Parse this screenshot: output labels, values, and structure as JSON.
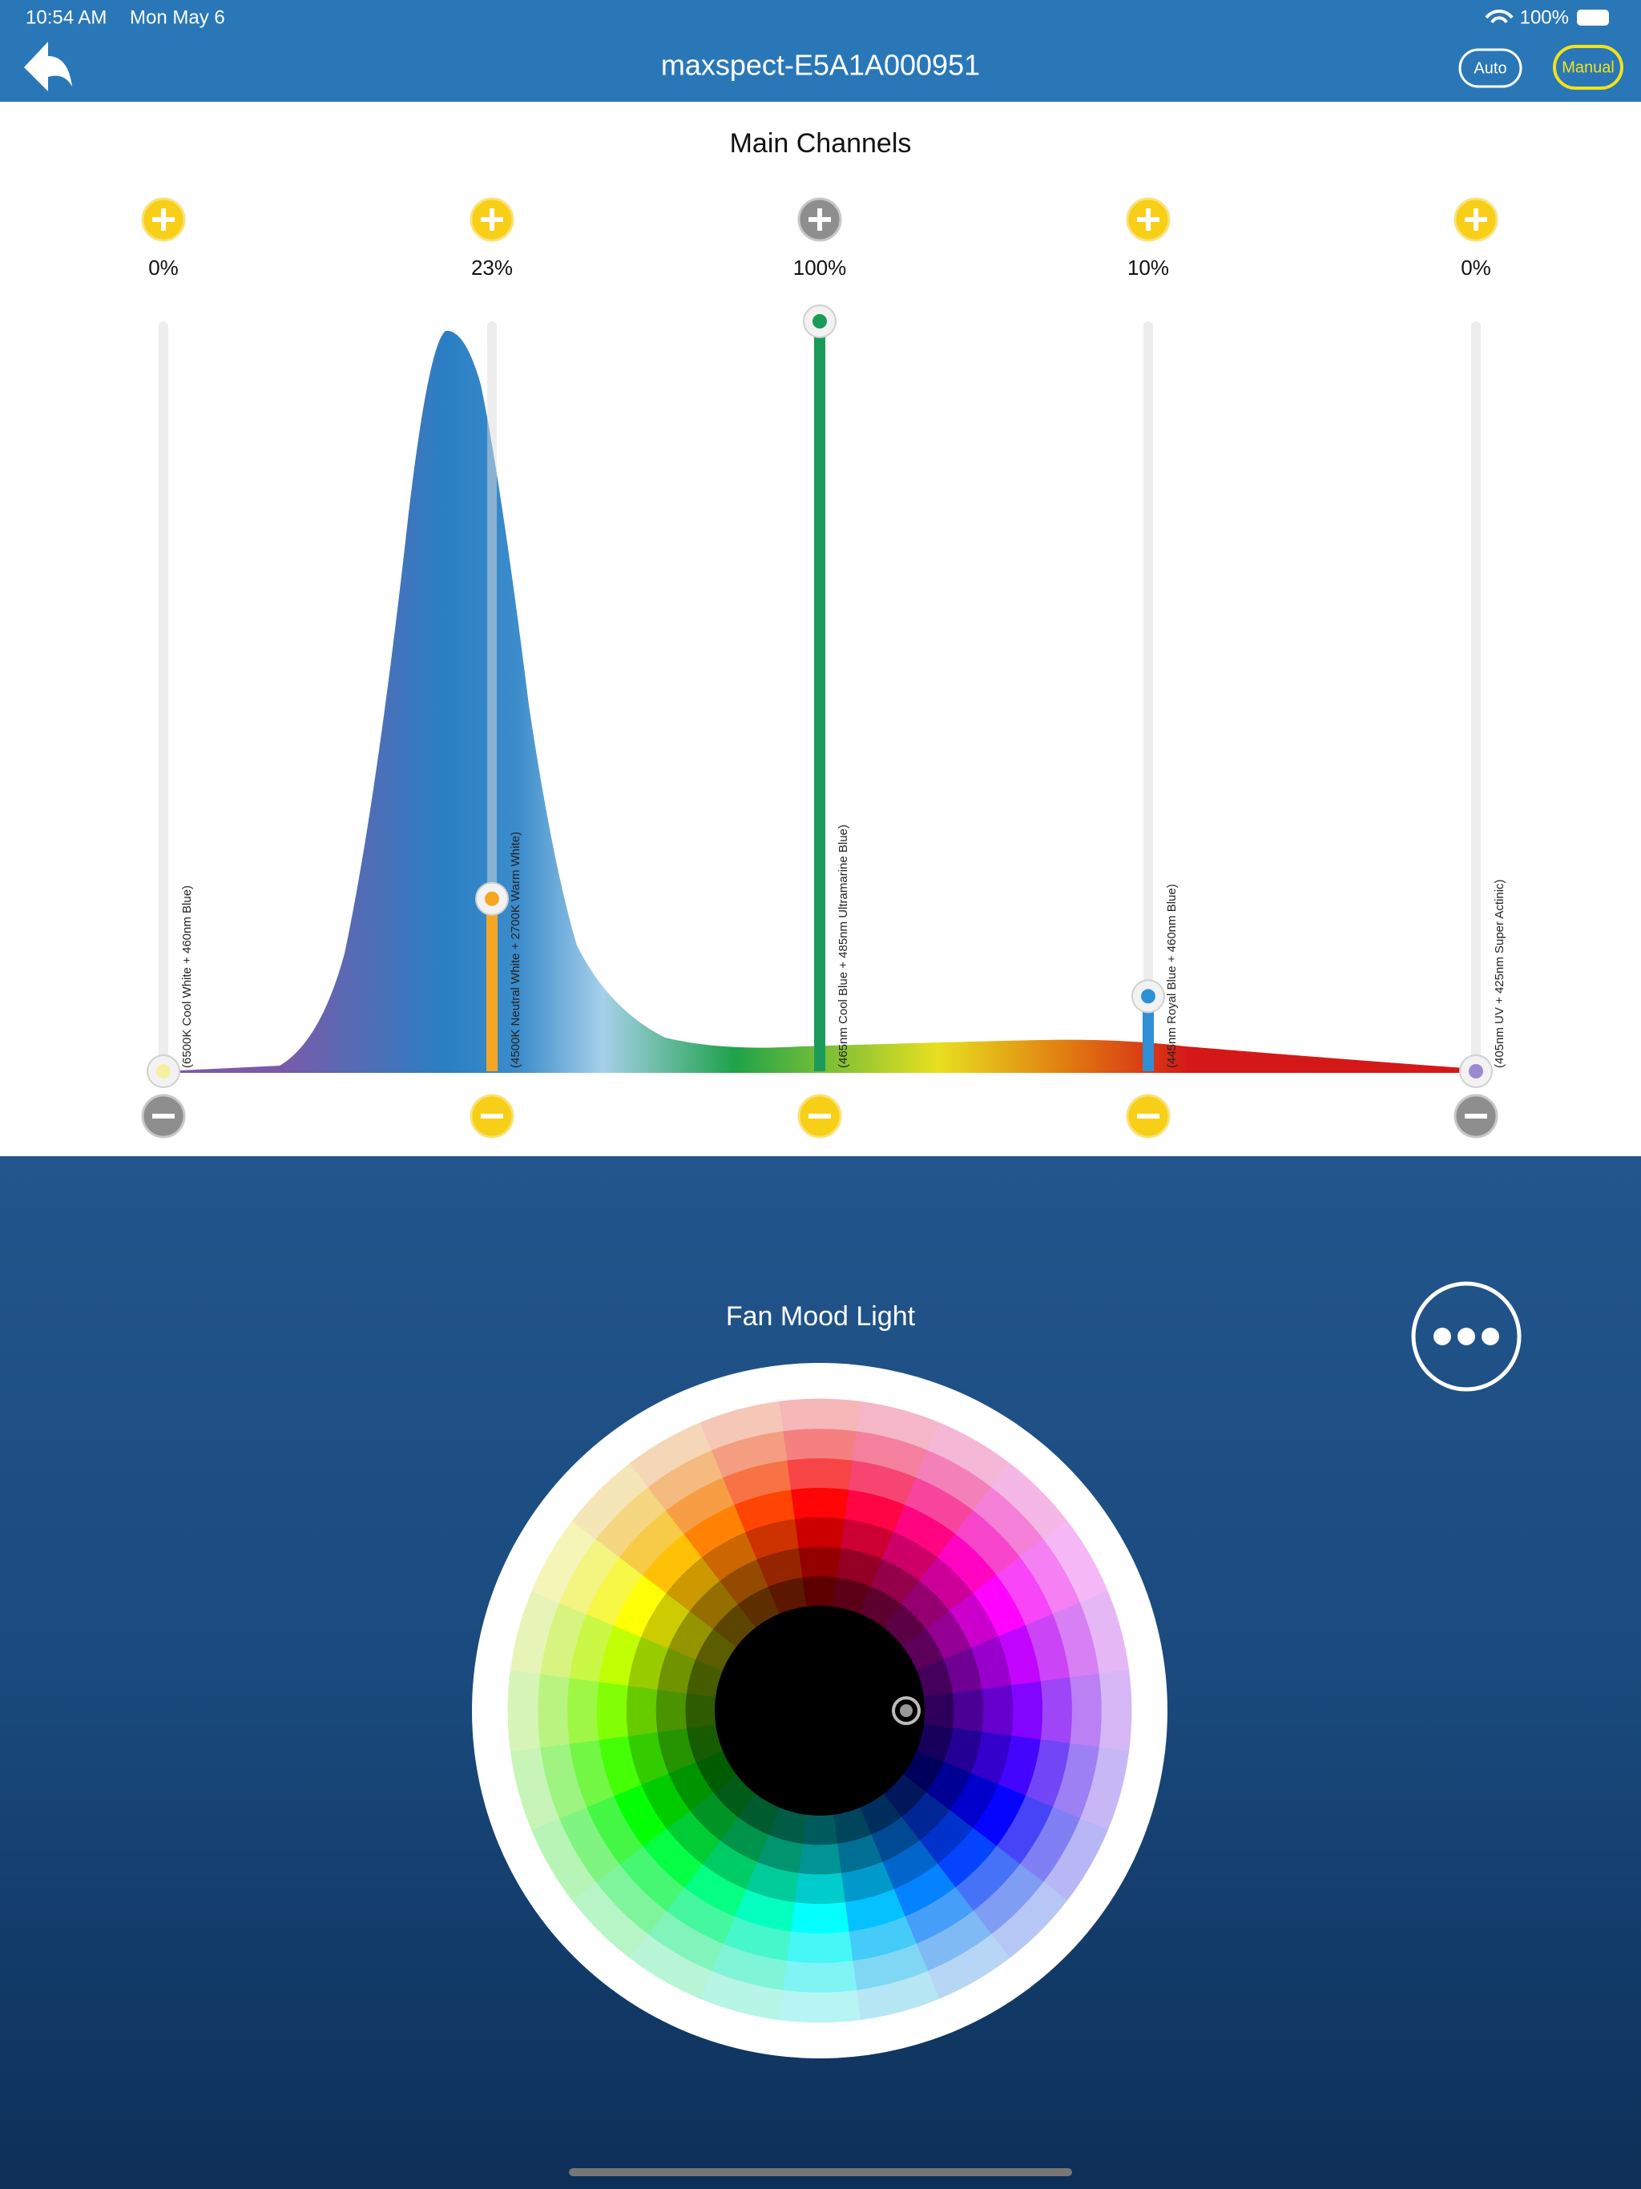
{
  "status": {
    "time": "10:54 AM",
    "date": "Mon May 6",
    "battery": "100%"
  },
  "header": {
    "title": "maxspect-E5A1A000951",
    "modes": [
      "Auto",
      "Manual"
    ]
  },
  "main": {
    "title": "Main Channels",
    "channels": [
      {
        "value": 0,
        "label": "0%",
        "name": "(6500K Cool White + 460nm Blue)"
      },
      {
        "value": 23,
        "label": "23%",
        "name": "(4500K Neutral White + 2700K Warm White)"
      },
      {
        "value": 100,
        "label": "100%",
        "name": "(465nm Cool Blue + 485nm Ultramarine Blue)"
      },
      {
        "value": 10,
        "label": "10%",
        "name": "(445nm Royal Blue + 460nm Blue)"
      },
      {
        "value": 0,
        "label": "0%",
        "name": "(405nm UV + 425nm Super Actinic)"
      }
    ]
  },
  "mood": {
    "title": "Fan Mood Light"
  }
}
